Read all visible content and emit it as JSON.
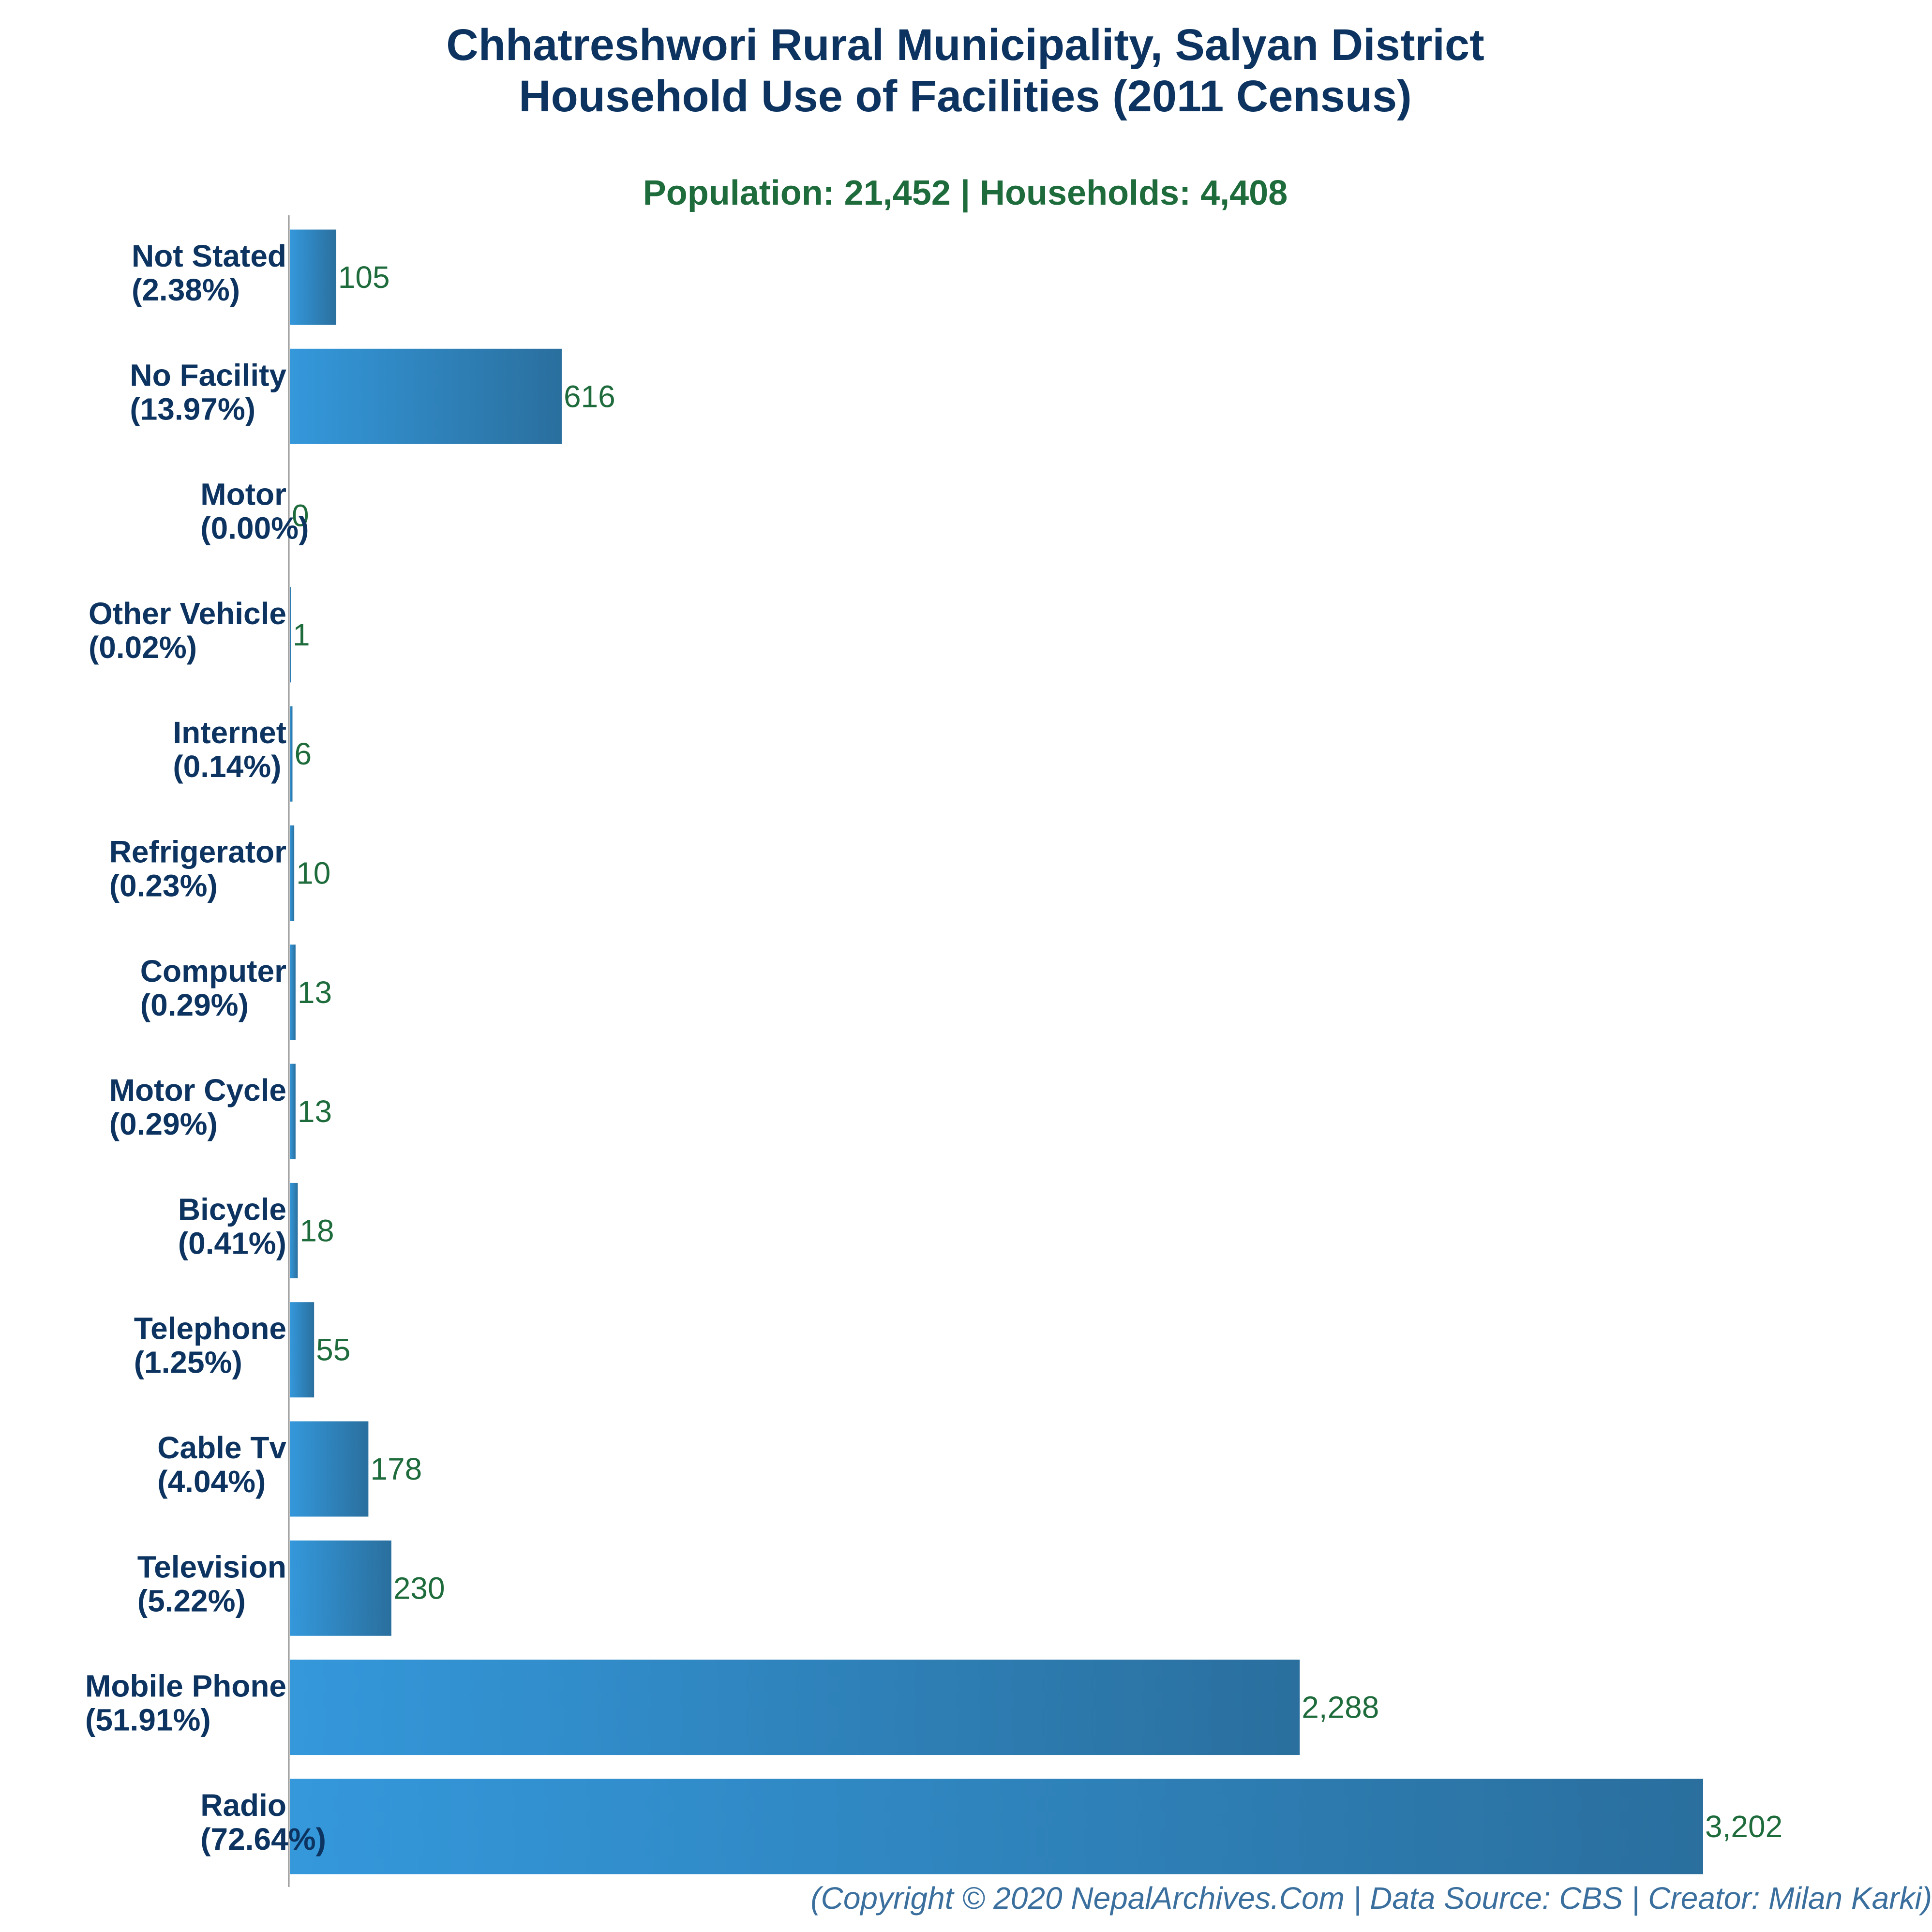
{
  "chart_data": {
    "type": "bar",
    "orientation": "horizontal",
    "title": [
      "Chhatreshwori Rural Municipality, Salyan District",
      "Household Use of Facilities (2011 Census)"
    ],
    "subtitle": "Population: 21,452 | Households: 4,408",
    "categories": [
      "Not Stated",
      "No Facility",
      "Motor",
      "Other Vehicle",
      "Internet",
      "Refrigerator",
      "Computer",
      "Motor Cycle",
      "Bicycle",
      "Telephone",
      "Cable Tv",
      "Television",
      "Mobile Phone",
      "Radio"
    ],
    "percent_labels": [
      "(2.38%)",
      "(13.97%)",
      "(0.00%)",
      "(0.02%)",
      "(0.14%)",
      "(0.23%)",
      "(0.29%)",
      "(0.29%)",
      "(0.41%)",
      "(1.25%)",
      "(4.04%)",
      "(5.22%)",
      "(51.91%)",
      "(72.64%)"
    ],
    "values": [
      105,
      616,
      0,
      1,
      6,
      10,
      13,
      13,
      18,
      55,
      178,
      230,
      2288,
      3202
    ],
    "value_labels": [
      "105",
      "616",
      "0",
      "1",
      "6",
      "10",
      "13",
      "13",
      "18",
      "55",
      "178",
      "230",
      "2,288",
      "3,202"
    ],
    "xlim": [
      0,
      3202
    ],
    "grid": false,
    "legend": "none",
    "colors": {
      "bar_light": "#3498db",
      "bar_dark": "#2a6f9e",
      "title": "#0d3461",
      "value": "#1e6b3c",
      "axis": "#999999"
    },
    "footer": "(Copyright © 2020 NepalArchives.Com | Data Source: CBS | Creator: Milan Karki)"
  }
}
